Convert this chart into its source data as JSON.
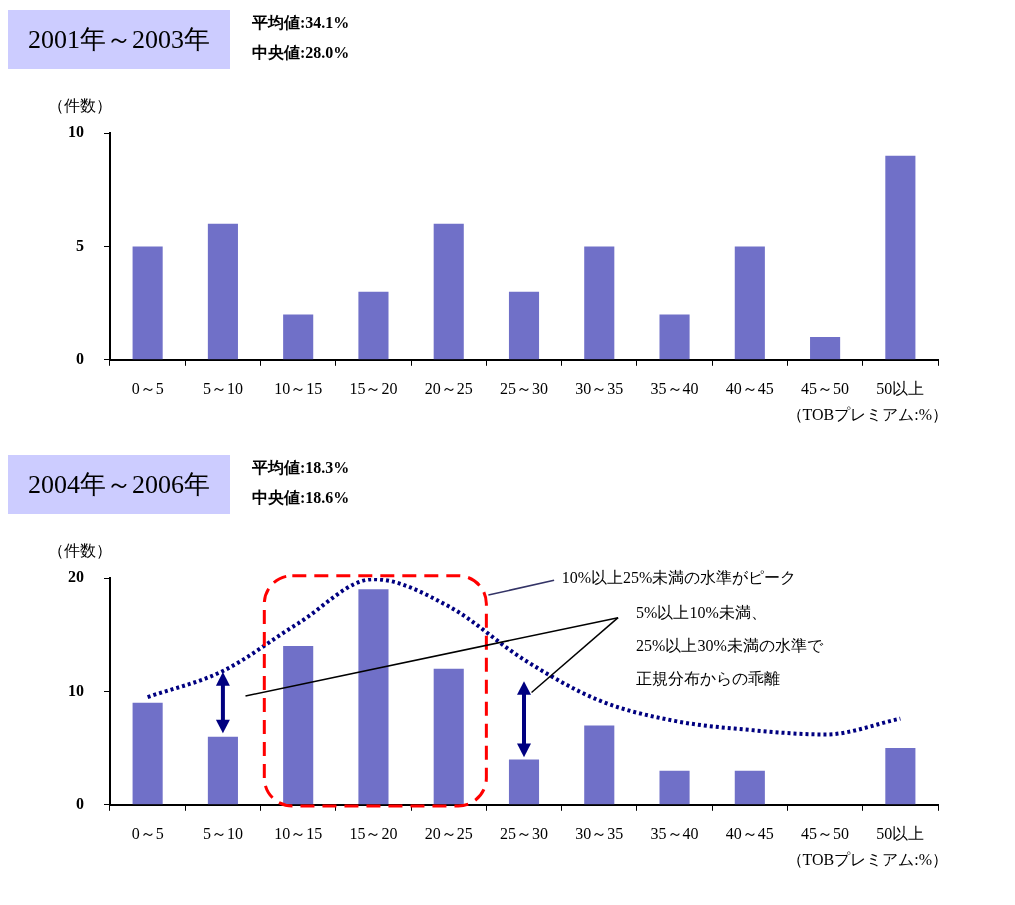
{
  "chart_data": [
    {
      "type": "bar",
      "title": "2001年～2003年",
      "subtitle": "平均値:34.1%\n中央値:28.0%",
      "ylabel": "（件数）",
      "xlabel": "（TOBプレミアム:%）",
      "categories": [
        "0～5",
        "5～10",
        "10～15",
        "15～20",
        "20～25",
        "25～30",
        "30～35",
        "35～40",
        "40～45",
        "45～50",
        "50以上"
      ],
      "values": [
        5,
        6,
        2,
        3,
        6,
        3,
        5,
        2,
        5,
        1,
        9
      ],
      "color": "#7070c8",
      "ylim": [
        0,
        10
      ],
      "yticks": [
        0,
        5,
        10
      ],
      "grid": false,
      "legend": false
    },
    {
      "type": "bar",
      "title": "2004年～2006年",
      "subtitle": "平均値:18.3%\n中央値:18.6%",
      "ylabel": "（件数）",
      "xlabel": "（TOBプレミアム:%）",
      "categories": [
        "0～5",
        "5～10",
        "10～15",
        "15～20",
        "20～25",
        "25～30",
        "30～35",
        "35～40",
        "40～45",
        "45～50",
        "50以上"
      ],
      "series": [
        {
          "type": "bar",
          "color": "#7070c8",
          "values": [
            9,
            6,
            14,
            19,
            12,
            4,
            7,
            3,
            3,
            0,
            5
          ]
        },
        {
          "type": "line",
          "color": "#000080",
          "line_style": "dotted",
          "marker": "none",
          "values": [
            9.5,
            11.8,
            16,
            19.9,
            17.5,
            12.8,
            9.2,
            7.4,
            6.6,
            6.2,
            7.6
          ]
        }
      ],
      "annotations": [
        "10%以上25%未満の水準がピーク",
        "5%以上10%未満、",
        "25%以上30%未満の水準で",
        "正規分布からの乖離"
      ],
      "ylim": [
        0,
        20
      ],
      "yticks": [
        0,
        10,
        20
      ],
      "grid": false,
      "legend": false
    }
  ]
}
